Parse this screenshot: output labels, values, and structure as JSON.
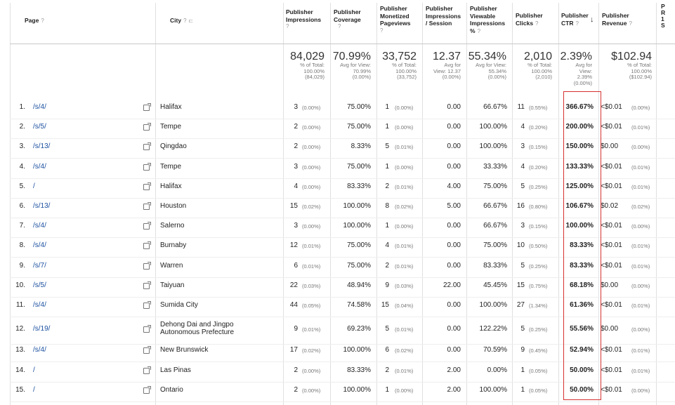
{
  "headers": {
    "page": "Page",
    "city": "City",
    "impressions": [
      "Publisher",
      "Impressions"
    ],
    "coverage": [
      "Publisher",
      "Coverage"
    ],
    "monetized": [
      "Publisher",
      "Monetized",
      "Pageviews"
    ],
    "imp_session": [
      "Publisher",
      "Impressions",
      "/ Session"
    ],
    "viewable": [
      "Publisher",
      "Viewable",
      "Impressions",
      "%"
    ],
    "clicks": [
      "Publisher",
      "Clicks"
    ],
    "ctr": [
      "Publisher",
      "CTR"
    ],
    "revenue": [
      "Publisher",
      "Revenue"
    ],
    "cutoff": [
      "P",
      "R",
      "1",
      "S"
    ]
  },
  "totals": {
    "impressions": {
      "big": "84,029",
      "l1": "% of Total:",
      "l2": "100.00%",
      "l3": "(84,029)"
    },
    "coverage": {
      "big": "70.99%",
      "l1": "Avg for View:",
      "l2": "70.99%",
      "l3": "(0.00%)"
    },
    "monetized": {
      "big": "33,752",
      "l1": "% of Total:",
      "l2": "100.00%",
      "l3": "(33,752)"
    },
    "imp_session": {
      "big": "12.37",
      "l1": "Avg for",
      "l2": "View: 12.37",
      "l3": "(0.00%)"
    },
    "viewable": {
      "big": "55.34%",
      "l1": "Avg for View:",
      "l2": "55.34%",
      "l3": "(0.00%)"
    },
    "clicks": {
      "big": "2,010",
      "l1": "% of Total:",
      "l2": "100.00%",
      "l3": "(2,010)"
    },
    "ctr": {
      "big": "2.39%",
      "l1": "Avg for",
      "l2": "View:",
      "l3": "2.39%",
      "l4": "(0.00%)"
    },
    "revenue": {
      "big": "$102.94",
      "l1": "% of Total:",
      "l2": "100.00%",
      "l3": "($102.94)"
    }
  },
  "rows": [
    {
      "n": "1.",
      "page": "/s/4/",
      "city": "Halifax",
      "imp": "3",
      "imp_p": "(0.00%)",
      "cov": "75.00%",
      "mon": "1",
      "mon_p": "(0.00%)",
      "ips": "0.00",
      "view": "66.67%",
      "clk": "11",
      "clk_p": "(0.55%)",
      "ctr": "366.67%",
      "rev": "<$0.01",
      "rev_p": "(0.00%)"
    },
    {
      "n": "2.",
      "page": "/s/5/",
      "city": "Tempe",
      "imp": "2",
      "imp_p": "(0.00%)",
      "cov": "75.00%",
      "mon": "1",
      "mon_p": "(0.00%)",
      "ips": "0.00",
      "view": "100.00%",
      "clk": "4",
      "clk_p": "(0.20%)",
      "ctr": "200.00%",
      "rev": "<$0.01",
      "rev_p": "(0.01%)"
    },
    {
      "n": "3.",
      "page": "/s/13/",
      "city": "Qingdao",
      "imp": "2",
      "imp_p": "(0.00%)",
      "cov": "8.33%",
      "mon": "5",
      "mon_p": "(0.01%)",
      "ips": "0.00",
      "view": "100.00%",
      "clk": "3",
      "clk_p": "(0.15%)",
      "ctr": "150.00%",
      "rev": "$0.00",
      "rev_p": "(0.00%)"
    },
    {
      "n": "4.",
      "page": "/s/4/",
      "city": "Tempe",
      "imp": "3",
      "imp_p": "(0.00%)",
      "cov": "75.00%",
      "mon": "1",
      "mon_p": "(0.00%)",
      "ips": "0.00",
      "view": "33.33%",
      "clk": "4",
      "clk_p": "(0.20%)",
      "ctr": "133.33%",
      "rev": "<$0.01",
      "rev_p": "(0.01%)"
    },
    {
      "n": "5.",
      "page": "/",
      "city": "Halifax",
      "imp": "4",
      "imp_p": "(0.00%)",
      "cov": "83.33%",
      "mon": "2",
      "mon_p": "(0.01%)",
      "ips": "4.00",
      "view": "75.00%",
      "clk": "5",
      "clk_p": "(0.25%)",
      "ctr": "125.00%",
      "rev": "<$0.01",
      "rev_p": "(0.01%)"
    },
    {
      "n": "6.",
      "page": "/s/13/",
      "city": "Houston",
      "imp": "15",
      "imp_p": "(0.02%)",
      "cov": "100.00%",
      "mon": "8",
      "mon_p": "(0.02%)",
      "ips": "5.00",
      "view": "66.67%",
      "clk": "16",
      "clk_p": "(0.80%)",
      "ctr": "106.67%",
      "rev": "$0.02",
      "rev_p": "(0.02%)"
    },
    {
      "n": "7.",
      "page": "/s/4/",
      "city": "Salerno",
      "imp": "3",
      "imp_p": "(0.00%)",
      "cov": "100.00%",
      "mon": "1",
      "mon_p": "(0.00%)",
      "ips": "0.00",
      "view": "66.67%",
      "clk": "3",
      "clk_p": "(0.15%)",
      "ctr": "100.00%",
      "rev": "<$0.01",
      "rev_p": "(0.00%)"
    },
    {
      "n": "8.",
      "page": "/s/4/",
      "city": "Burnaby",
      "imp": "12",
      "imp_p": "(0.01%)",
      "cov": "75.00%",
      "mon": "4",
      "mon_p": "(0.01%)",
      "ips": "0.00",
      "view": "75.00%",
      "clk": "10",
      "clk_p": "(0.50%)",
      "ctr": "83.33%",
      "rev": "<$0.01",
      "rev_p": "(0.01%)"
    },
    {
      "n": "9.",
      "page": "/s/7/",
      "city": "Warren",
      "imp": "6",
      "imp_p": "(0.01%)",
      "cov": "75.00%",
      "mon": "2",
      "mon_p": "(0.01%)",
      "ips": "0.00",
      "view": "83.33%",
      "clk": "5",
      "clk_p": "(0.25%)",
      "ctr": "83.33%",
      "rev": "<$0.01",
      "rev_p": "(0.01%)"
    },
    {
      "n": "10.",
      "page": "/s/5/",
      "city": "Taiyuan",
      "imp": "22",
      "imp_p": "(0.03%)",
      "cov": "48.94%",
      "mon": "9",
      "mon_p": "(0.03%)",
      "ips": "22.00",
      "view": "45.45%",
      "clk": "15",
      "clk_p": "(0.75%)",
      "ctr": "68.18%",
      "rev": "$0.00",
      "rev_p": "(0.00%)"
    },
    {
      "n": "11.",
      "page": "/s/4/",
      "city": "Sumida City",
      "imp": "44",
      "imp_p": "(0.05%)",
      "cov": "74.58%",
      "mon": "15",
      "mon_p": "(0.04%)",
      "ips": "0.00",
      "view": "100.00%",
      "clk": "27",
      "clk_p": "(1.34%)",
      "ctr": "61.36%",
      "rev": "<$0.01",
      "rev_p": "(0.01%)"
    },
    {
      "n": "12.",
      "page": "/s/19/",
      "city": "Dehong Dai and Jingpo",
      "city2": "Autonomous Prefecture",
      "imp": "9",
      "imp_p": "(0.01%)",
      "cov": "69.23%",
      "mon": "5",
      "mon_p": "(0.01%)",
      "ips": "0.00",
      "view": "122.22%",
      "clk": "5",
      "clk_p": "(0.25%)",
      "ctr": "55.56%",
      "rev": "$0.00",
      "rev_p": "(0.00%)"
    },
    {
      "n": "13.",
      "page": "/s/4/",
      "city": "New Brunswick",
      "imp": "17",
      "imp_p": "(0.02%)",
      "cov": "100.00%",
      "mon": "6",
      "mon_p": "(0.02%)",
      "ips": "0.00",
      "view": "70.59%",
      "clk": "9",
      "clk_p": "(0.45%)",
      "ctr": "52.94%",
      "rev": "<$0.01",
      "rev_p": "(0.01%)"
    },
    {
      "n": "14.",
      "page": "/",
      "city": "Las Pinas",
      "imp": "2",
      "imp_p": "(0.00%)",
      "cov": "83.33%",
      "mon": "2",
      "mon_p": "(0.01%)",
      "ips": "2.00",
      "view": "0.00%",
      "clk": "1",
      "clk_p": "(0.05%)",
      "ctr": "50.00%",
      "rev": "<$0.01",
      "rev_p": "(0.01%)"
    },
    {
      "n": "15.",
      "page": "/",
      "city": "Ontario",
      "imp": "2",
      "imp_p": "(0.00%)",
      "cov": "100.00%",
      "mon": "1",
      "mon_p": "(0.00%)",
      "ips": "2.00",
      "view": "100.00%",
      "clk": "1",
      "clk_p": "(0.05%)",
      "ctr": "50.00%",
      "rev": "<$0.01",
      "rev_p": "(0.00%)"
    }
  ]
}
